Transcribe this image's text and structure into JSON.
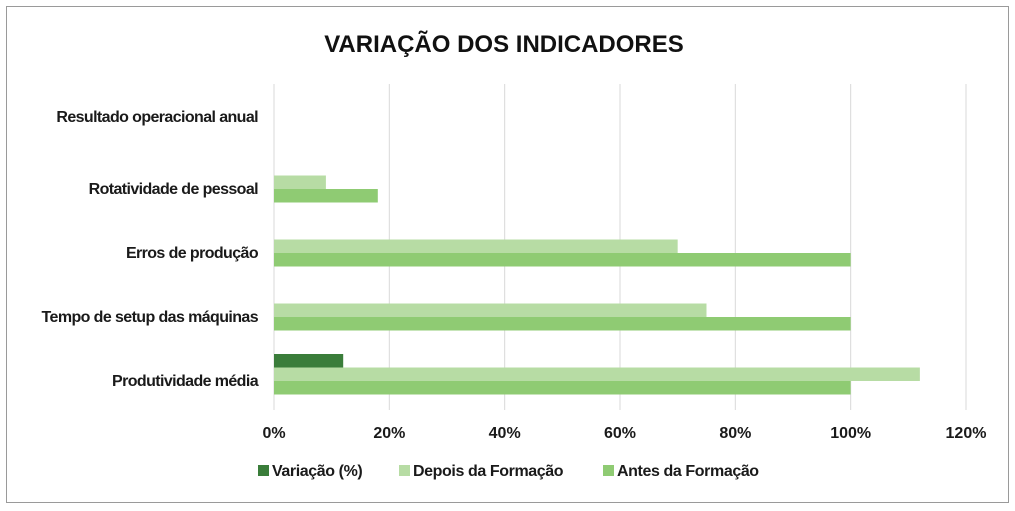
{
  "chart_data": {
    "type": "bar",
    "orientation": "horizontal",
    "title": "VARIAÇÃO DOS INDICADORES",
    "categories": [
      "Produtividade média",
      "Tempo de setup das máquinas",
      "Erros de produção",
      "Rotatividade de pessoal",
      "Resultado operacional anual"
    ],
    "series": [
      {
        "name": "Variação (%)",
        "color": "#3a7d3a",
        "values": [
          12,
          null,
          null,
          null,
          null
        ]
      },
      {
        "name": "Depois da Formação",
        "color": "#b7dca4",
        "values": [
          112,
          75,
          70,
          9,
          null
        ]
      },
      {
        "name": "Antes da Formação",
        "color": "#8fcb73",
        "values": [
          100,
          100,
          100,
          18,
          null
        ]
      }
    ],
    "xlim": [
      0,
      120
    ],
    "xticks": [
      "0%",
      "20%",
      "40%",
      "60%",
      "80%",
      "100%",
      "120%"
    ],
    "grid": true,
    "legend_position": "bottom"
  }
}
